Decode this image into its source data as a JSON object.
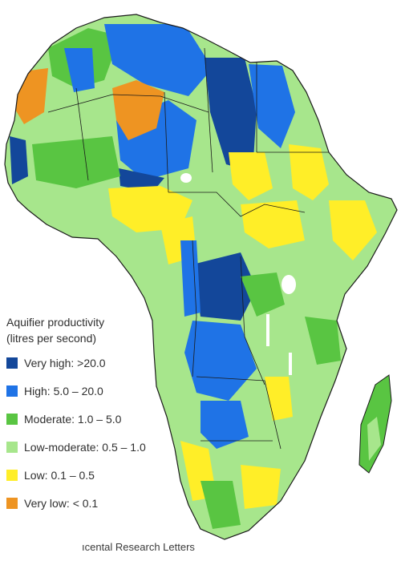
{
  "colors": {
    "very_high": "#13479a",
    "high": "#1f73e6",
    "moderate": "#59c542",
    "low_moderate": "#a7e68c",
    "low": "#ffee28",
    "very_low": "#ee9422",
    "boundary": "#1a1a1a",
    "lake": "#ffffff"
  },
  "legend": {
    "title": "Aquifier productivity",
    "subtitle": "(litres per second)",
    "items": [
      {
        "label": "Very high: >20.0",
        "color": "#13479a"
      },
      {
        "label": "High: 5.0 – 20.0",
        "color": "#1f73e6"
      },
      {
        "label": "Moderate: 1.0 – 5.0",
        "color": "#59c542"
      },
      {
        "label": "Low-moderate: 0.5 – 1.0",
        "color": "#a7e68c"
      },
      {
        "label": "Low: 0.1 – 0.5",
        "color": "#ffee28"
      },
      {
        "label": "Very low: < 0.1",
        "color": "#ee9422"
      }
    ]
  },
  "caption": "ıcental Research Letters"
}
